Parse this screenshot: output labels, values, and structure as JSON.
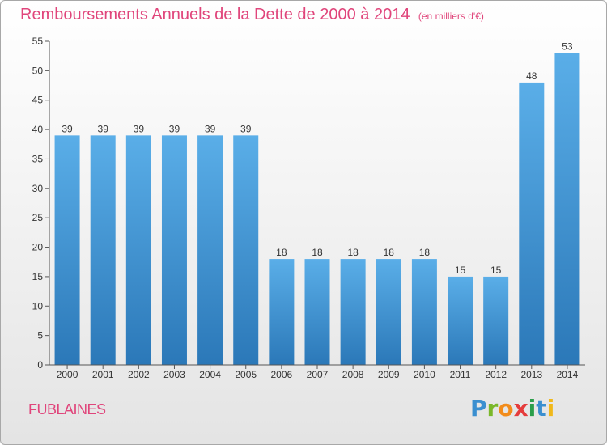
{
  "chart_data": {
    "type": "bar",
    "title": "Remboursements Annuels de la Dette de 2000 à 2014",
    "subtitle": "(en milliers d'€)",
    "xlabel": "",
    "ylabel": "",
    "categories": [
      "2000",
      "2001",
      "2002",
      "2003",
      "2004",
      "2005",
      "2006",
      "2007",
      "2008",
      "2009",
      "2010",
      "2011",
      "2012",
      "2013",
      "2014"
    ],
    "values": [
      39,
      39,
      39,
      39,
      39,
      39,
      18,
      18,
      18,
      18,
      18,
      15,
      15,
      48,
      53
    ],
    "ylim": [
      0,
      55
    ],
    "yticks": [
      0,
      5,
      10,
      15,
      20,
      25,
      30,
      35,
      40,
      45,
      50,
      55
    ],
    "grid": false,
    "legend": "none",
    "colors": {
      "bar_top": "#5aaee8",
      "bar_bottom": "#2b78b8",
      "text": "#333333",
      "accent": "#e0457b"
    }
  },
  "footer": {
    "commune": "FUBLAINES",
    "logo": {
      "letters": [
        {
          "char": "P",
          "color": "#3a8fd0"
        },
        {
          "char": "r",
          "color": "#7ab82a"
        },
        {
          "char": "o",
          "color": "#f28c1b"
        },
        {
          "char": "x",
          "color": "#e53c3c"
        },
        {
          "char": "i",
          "color": "#2a9e4a"
        },
        {
          "char": "t",
          "color": "#3a8fd0"
        },
        {
          "char": "i",
          "color": "#f0b81b"
        }
      ]
    }
  }
}
